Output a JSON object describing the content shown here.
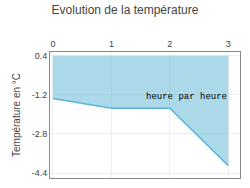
{
  "chart_data": {
    "type": "area",
    "title": "Evolution de la température",
    "ylabel": "Température en °C",
    "x": [
      0,
      1,
      2,
      3
    ],
    "series": [
      {
        "color": "#5ab4d4",
        "values": [
          -1.35,
          -1.75,
          -1.75,
          -4.1
        ]
      }
    ],
    "fill_top": 0.4,
    "xlim": [
      -0.05,
      3.2
    ],
    "xticks": [
      0,
      1,
      2,
      3
    ],
    "ylim": [
      -4.6,
      0.55
    ],
    "yticks": [
      0.4,
      -1.2,
      -2.8,
      -4.4
    ],
    "grid": true,
    "annotations": [
      {
        "text": "heure par heure",
        "x": 1.55,
        "y": -1.3
      }
    ]
  }
}
